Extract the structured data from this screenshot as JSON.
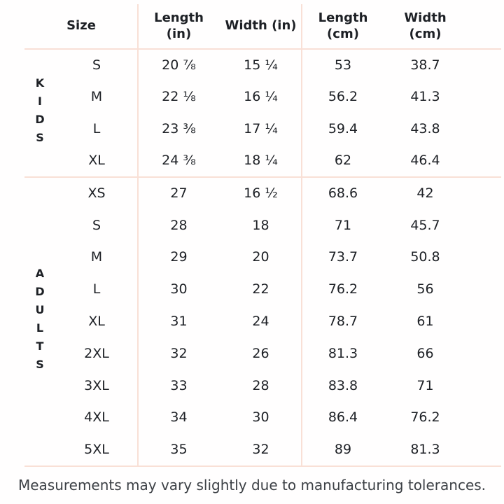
{
  "chart_data": {
    "type": "table",
    "title": "",
    "columns": [
      "Size",
      "Length (in)",
      "Width (in)",
      "Length (cm)",
      "Width (cm)"
    ],
    "header_lines": [
      [
        "Size"
      ],
      [
        "Length",
        "(in)"
      ],
      [
        "Width (in)"
      ],
      [
        "Length",
        "(cm)"
      ],
      [
        "Width",
        "(cm)"
      ]
    ],
    "groups": [
      {
        "label": "KIDS",
        "rows": [
          [
            "S",
            "20 ⅞",
            "15 ¼",
            "53",
            "38.7"
          ],
          [
            "M",
            "22 ⅛",
            "16 ¼",
            "56.2",
            "41.3"
          ],
          [
            "L",
            "23 ⅜",
            "17 ¼",
            "59.4",
            "43.8"
          ],
          [
            "XL",
            "24 ⅜",
            "18 ¼",
            "62",
            "46.4"
          ]
        ]
      },
      {
        "label": "ADULTS",
        "rows": [
          [
            "XS",
            "27",
            "16 ½",
            "68.6",
            "42"
          ],
          [
            "S",
            "28",
            "18",
            "71",
            "45.7"
          ],
          [
            "M",
            "29",
            "20",
            "73.7",
            "50.8"
          ],
          [
            "L",
            "30",
            "22",
            "76.2",
            "56"
          ],
          [
            "XL",
            "31",
            "24",
            "78.7",
            "61"
          ],
          [
            "2XL",
            "32",
            "26",
            "81.3",
            "66"
          ],
          [
            "3XL",
            "33",
            "28",
            "83.8",
            "71"
          ],
          [
            "4XL",
            "34",
            "30",
            "86.4",
            "76.2"
          ],
          [
            "5XL",
            "35",
            "32",
            "89",
            "81.3"
          ]
        ]
      }
    ]
  },
  "footer": {
    "note": "Measurements may vary slightly due to manufacturing tolerances."
  },
  "colors": {
    "divider": "#f9e0d6",
    "text": "#1d2025",
    "note_text": "#3c4045",
    "background": "#fffefe"
  }
}
